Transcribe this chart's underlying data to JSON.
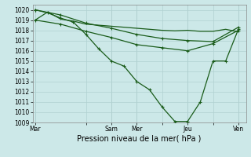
{
  "title": "",
  "xlabel": "Pression niveau de la mer( hPa )",
  "bg_color": "#cce8e8",
  "grid_color": "#b0d0d0",
  "line_color": "#1a5c1a",
  "ylim": [
    1009,
    1020.5
  ],
  "xlim": [
    -0.1,
    8.3
  ],
  "xtick_labels": [
    "Mar",
    "",
    "Sam",
    "Mer",
    "",
    "Jeu",
    "",
    "Ven"
  ],
  "xtick_positions": [
    0,
    2,
    3,
    4,
    5,
    6,
    7,
    8
  ],
  "ytick_values": [
    1009,
    1010,
    1011,
    1012,
    1013,
    1014,
    1015,
    1016,
    1017,
    1018,
    1019,
    1020
  ],
  "vlines": [
    0,
    3,
    4,
    6,
    8
  ],
  "line1_x": [
    0,
    0.5,
    1.0,
    1.5,
    2.0,
    2.5,
    3.0,
    3.5,
    4.0,
    4.5,
    5.0,
    5.5,
    6.0,
    6.5,
    7.0,
    7.5,
    8.0
  ],
  "line1_y": [
    1019.0,
    1019.8,
    1019.1,
    1018.9,
    1018.6,
    1018.5,
    1018.4,
    1018.3,
    1018.2,
    1018.1,
    1018.0,
    1017.95,
    1018.0,
    1017.9,
    1017.9,
    1018.1,
    1017.85
  ],
  "line1_markers": false,
  "line2_x": [
    0,
    0.5,
    1.0,
    1.5,
    2.0,
    2.5,
    3.0,
    3.5,
    4.0,
    4.5,
    5.0,
    5.5,
    6.0,
    6.5,
    7.0,
    7.5,
    8.0
  ],
  "line2_y": [
    1020.0,
    1019.7,
    1019.2,
    1018.8,
    1017.6,
    1016.2,
    1015.0,
    1014.5,
    1013.0,
    1012.2,
    1010.5,
    1009.1,
    1009.1,
    1011.0,
    1015.0,
    1015.0,
    1018.1
  ],
  "line2_markers": true,
  "line3_x": [
    0,
    1,
    2,
    3,
    4,
    5,
    6,
    7,
    8
  ],
  "line3_y": [
    1020.0,
    1019.5,
    1018.7,
    1018.2,
    1017.6,
    1017.2,
    1017.0,
    1016.9,
    1018.3
  ],
  "line3_markers": true,
  "line4_x": [
    0,
    1,
    2,
    3,
    4,
    5,
    6,
    7,
    8
  ],
  "line4_y": [
    1019.0,
    1018.6,
    1017.9,
    1017.3,
    1016.6,
    1016.3,
    1016.0,
    1016.7,
    1018.0
  ],
  "line4_markers": true,
  "marker_style": "+",
  "marker_size": 3,
  "linewidth": 0.9,
  "xlabel_fontsize": 7,
  "tick_fontsize": 5.5
}
